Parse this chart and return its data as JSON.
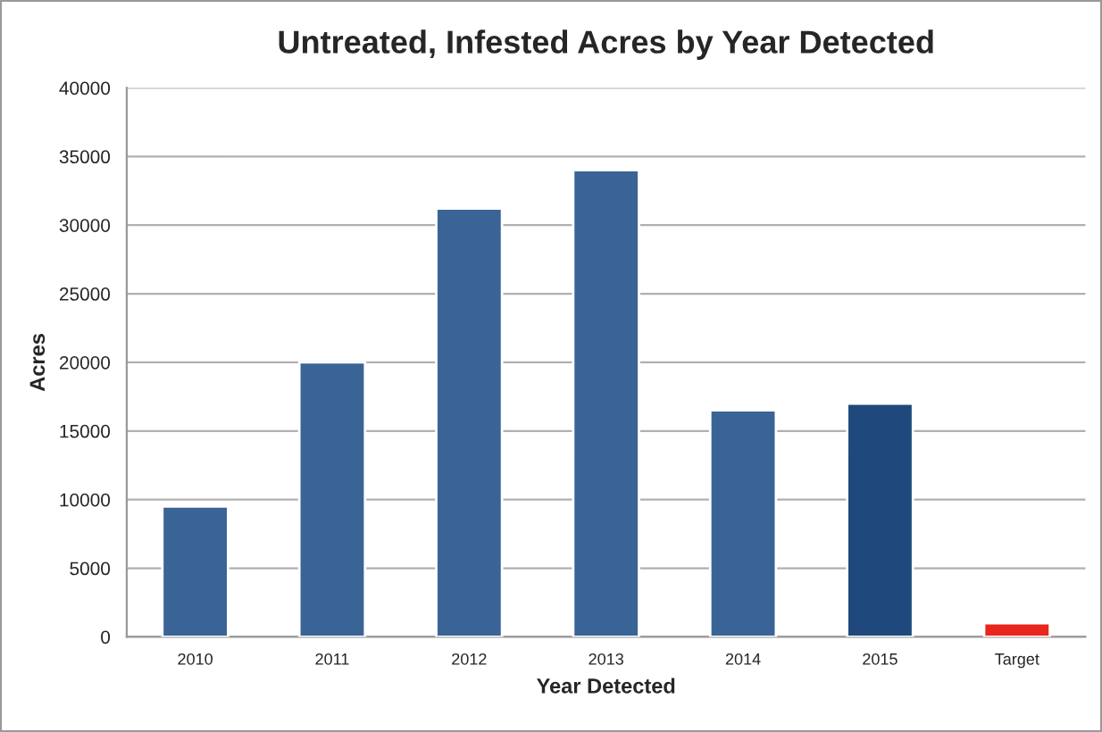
{
  "chart_data": {
    "type": "bar",
    "title": "Untreated, Infested Acres by Year Detected",
    "xlabel": "Year Detected",
    "ylabel": "Acres",
    "categories": [
      "2010",
      "2011",
      "2012",
      "2013",
      "2014",
      "2015",
      "Target"
    ],
    "values": [
      9500,
      20000,
      31200,
      34000,
      16500,
      17000,
      1000
    ],
    "colors": [
      "#3a6496",
      "#3a6496",
      "#3a6496",
      "#3a6496",
      "#3a6496",
      "#1f497d",
      "#e8261c"
    ],
    "ylim": [
      0,
      40000
    ],
    "yticks": [
      0,
      5000,
      10000,
      15000,
      20000,
      25000,
      30000,
      35000,
      40000
    ],
    "grid": "y"
  }
}
